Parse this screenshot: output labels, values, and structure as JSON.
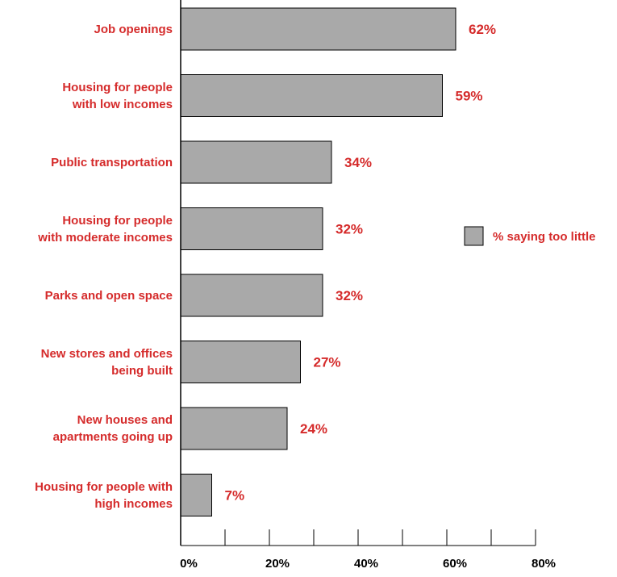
{
  "chart_data": {
    "type": "bar",
    "orientation": "horizontal",
    "categories": [
      "Job openings",
      "Housing for people\nwith low incomes",
      "Public transportation",
      "Housing for people\nwith moderate incomes",
      "Parks and open space",
      "New stores and offices\nbeing built",
      "New houses and\napartments going up",
      "Housing for people with\nhigh incomes"
    ],
    "series": [
      {
        "name": "% saying too little",
        "values": [
          62,
          59,
          34,
          32,
          32,
          27,
          24,
          7
        ],
        "value_labels": [
          "62%",
          "59%",
          "34%",
          "32%",
          "32%",
          "27%",
          "24%",
          "7%"
        ]
      }
    ],
    "x_ticks": [
      "0%",
      "20%",
      "40%",
      "60%",
      "80%"
    ],
    "xlim": [
      0,
      80
    ],
    "grid": false,
    "legend_position": "right",
    "colors": {
      "bar": "#a9a9a9",
      "bar_border": "#000000",
      "label": "#d52b2b",
      "axis": "#000000"
    }
  }
}
